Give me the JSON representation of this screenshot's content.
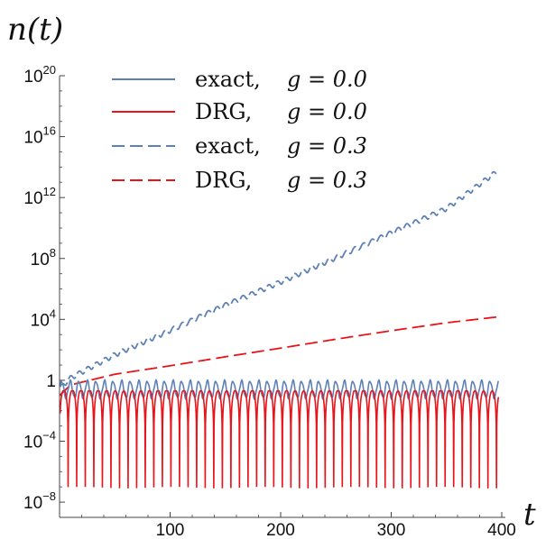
{
  "chart_data": {
    "type": "line",
    "ylabel": "n(t)",
    "xlabel": "t",
    "yscale": "log",
    "xlim": [
      0,
      400
    ],
    "ylim": [
      1e-09,
      1e+20
    ],
    "xticks": [
      100,
      200,
      300,
      400
    ],
    "yticks": [
      {
        "value": 1e-08,
        "base": "10",
        "exp": "−8"
      },
      {
        "value": 0.0001,
        "base": "10",
        "exp": "−4"
      },
      {
        "value": 1,
        "base": "1",
        "exp": ""
      },
      {
        "value": 10000.0,
        "base": "10",
        "exp": "4"
      },
      {
        "value": 100000000.0,
        "base": "10",
        "exp": "8"
      },
      {
        "value": 1000000000000.0,
        "base": "10",
        "exp": "12"
      },
      {
        "value": 1e+16,
        "base": "10",
        "exp": "16"
      },
      {
        "value": 1e+20,
        "base": "10",
        "exp": "20"
      }
    ],
    "legend_position": "top-left",
    "series": [
      {
        "name": "exact,",
        "g": "g = 0.0",
        "color": "#5E81B5",
        "dash": "solid",
        "description": "oscillates periodically between ~1e-1 and ~1 (period ~8)"
      },
      {
        "name": "DRG,",
        "g": "g = 0.0",
        "color": "#E8141A",
        "dash": "solid",
        "description": "oscillates periodically with deep dips to ~1e-6..1e-7 and peaks ~1e-1"
      },
      {
        "name": "exact,",
        "g": "g = 0.3",
        "color": "#5E81B5",
        "dash": "dashed",
        "x": [
          0,
          10,
          50,
          100,
          150,
          200,
          250,
          300,
          350,
          395
        ],
        "y": [
          0.3,
          1.5,
          50,
          2000,
          90000,
          3000000,
          120000000.0,
          5000000000.0,
          200000000000.0,
          50000000000000.0
        ]
      },
      {
        "name": "DRG,",
        "g": "g = 0.3",
        "color": "#E8141A",
        "dash": "dashed",
        "x": [
          0,
          10,
          50,
          100,
          150,
          200,
          250,
          300,
          350,
          398
        ],
        "y": [
          0.1,
          0.5,
          2.5,
          9,
          35,
          130,
          500,
          1800,
          6000,
          15000
        ]
      }
    ]
  }
}
